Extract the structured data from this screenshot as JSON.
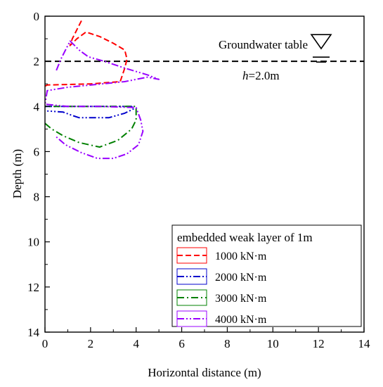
{
  "chart_data": {
    "type": "line",
    "xlabel": "Horizontal distance  (m)",
    "ylabel": "Depth  (m)",
    "xlim": [
      0,
      14
    ],
    "ylim": [
      0,
      14
    ],
    "y_inverted": true,
    "grid": false,
    "x_ticks": [
      "0",
      "2",
      "4",
      "6",
      "8",
      "10",
      "12",
      "14"
    ],
    "y_ticks": [
      "0",
      "2",
      "4",
      "6",
      "8",
      "10",
      "12",
      "14"
    ],
    "legend": {
      "title": "embedded weak layer of 1m",
      "placement": "bottom-right"
    },
    "annotations": {
      "groundwater_label": "Groundwater table",
      "groundwater_depth": 2.0,
      "h_italic": "h",
      "h_value": "=2.0m"
    },
    "series": [
      {
        "name": "1000 kN·m",
        "color": "#ff0000",
        "dash": "dash",
        "points": [
          [
            1.6,
            0.2
          ],
          [
            1.4,
            0.6
          ],
          [
            1.2,
            1.0
          ],
          [
            1.1,
            1.3
          ],
          [
            1.4,
            1.0
          ],
          [
            1.8,
            0.7
          ],
          [
            2.4,
            0.9
          ],
          [
            3.0,
            1.2
          ],
          [
            3.5,
            1.5
          ],
          [
            3.6,
            1.9
          ],
          [
            3.5,
            2.3
          ],
          [
            3.4,
            2.6
          ],
          [
            3.3,
            2.9
          ],
          [
            2.0,
            3.0
          ],
          [
            0.1,
            3.05
          ],
          [
            0.0,
            3.1
          ]
        ]
      },
      {
        "name": "2000 kN·m",
        "color": "#0000cc",
        "dash": "dashdotdot",
        "points": [
          [
            0.0,
            4.0
          ],
          [
            1.5,
            4.0
          ],
          [
            3.8,
            4.0
          ],
          [
            3.9,
            4.1
          ],
          [
            3.5,
            4.3
          ],
          [
            2.8,
            4.5
          ],
          [
            1.5,
            4.5
          ],
          [
            1.2,
            4.4
          ],
          [
            0.8,
            4.25
          ],
          [
            0.1,
            4.2
          ]
        ]
      },
      {
        "name": "3000 kN·m",
        "color": "#008000",
        "dash": "dashdot",
        "points": [
          [
            0.0,
            4.75
          ],
          [
            0.3,
            5.0
          ],
          [
            0.8,
            5.3
          ],
          [
            1.5,
            5.6
          ],
          [
            2.4,
            5.8
          ],
          [
            3.2,
            5.5
          ],
          [
            3.8,
            5.0
          ],
          [
            4.0,
            4.6
          ],
          [
            4.0,
            4.0
          ],
          [
            2.5,
            4.0
          ],
          [
            1.0,
            4.0
          ],
          [
            0.0,
            4.0
          ]
        ]
      },
      {
        "name": "4000 kN·m",
        "color": "#9900ff",
        "dash": "dashdotdot",
        "points": [
          [
            0.5,
            2.4
          ],
          [
            0.7,
            1.9
          ],
          [
            0.9,
            1.5
          ],
          [
            1.1,
            1.1
          ],
          [
            1.3,
            1.3
          ],
          [
            1.5,
            1.5
          ],
          [
            1.9,
            1.8
          ],
          [
            2.6,
            2.0
          ],
          [
            3.5,
            2.3
          ],
          [
            4.5,
            2.6
          ],
          [
            5.0,
            2.8
          ],
          [
            4.5,
            2.7
          ],
          [
            3.5,
            2.9
          ],
          [
            2.5,
            3.0
          ],
          [
            1.0,
            3.15
          ],
          [
            0.1,
            3.3
          ],
          [
            0.0,
            3.9
          ],
          [
            1.0,
            4.0
          ],
          [
            2.5,
            4.0
          ],
          [
            4.0,
            4.05
          ],
          [
            4.2,
            4.6
          ],
          [
            4.3,
            5.1
          ],
          [
            4.1,
            5.7
          ],
          [
            3.6,
            6.1
          ],
          [
            3.0,
            6.3
          ],
          [
            2.3,
            6.3
          ],
          [
            1.6,
            6.05
          ],
          [
            0.9,
            5.7
          ],
          [
            0.5,
            5.35
          ]
        ]
      }
    ]
  }
}
